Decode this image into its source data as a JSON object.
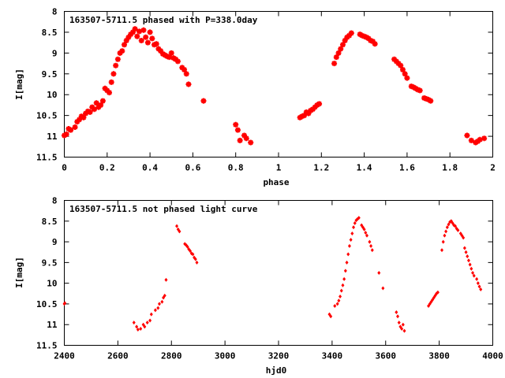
{
  "chart_data": [
    {
      "type": "scatter",
      "title": "163507-5711.5 phased with P=338.0day",
      "xlabel": "phase",
      "ylabel": "I[mag]",
      "xlim": [
        0,
        2
      ],
      "ylim": [
        11.5,
        8
      ],
      "y_inverted": true,
      "xticks": [
        0,
        0.2,
        0.4,
        0.6,
        0.8,
        1,
        1.2,
        1.4,
        1.6,
        1.8,
        2
      ],
      "xtick_labels": [
        "0",
        "0.2",
        "0.4",
        "0.6",
        "0.8",
        "1",
        "1.2",
        "1.4",
        "1.6",
        "1.8",
        "2"
      ],
      "yticks": [
        8,
        8.5,
        9,
        9.5,
        10,
        10.5,
        11,
        11.5
      ],
      "ytick_labels": [
        "8",
        "8.5",
        "9",
        "9.5",
        "10",
        "10.5",
        "11",
        "11.5"
      ],
      "grid": false,
      "marker_color": "#ff0000",
      "series": [
        {
          "x": [
            0.0,
            0.01,
            0.02,
            0.03,
            0.05,
            0.06,
            0.07,
            0.08,
            0.09,
            0.1,
            0.11,
            0.12,
            0.13,
            0.14,
            0.15,
            0.16,
            0.17,
            0.18,
            0.19,
            0.2,
            0.21,
            0.22,
            0.23,
            0.24,
            0.25,
            0.26,
            0.27,
            0.28,
            0.29,
            0.3,
            0.31,
            0.32,
            0.33,
            0.34,
            0.35,
            0.36,
            0.37,
            0.38,
            0.39,
            0.4,
            0.41,
            0.42,
            0.43,
            0.44,
            0.45,
            0.46,
            0.47,
            0.48,
            0.49,
            0.5,
            0.51,
            0.52,
            0.53,
            0.55,
            0.56,
            0.57,
            0.58,
            0.65,
            0.8,
            0.81,
            0.82,
            0.84,
            0.85,
            0.87,
            1.1,
            1.11,
            1.12,
            1.13,
            1.14,
            1.15,
            1.16,
            1.17,
            1.18,
            1.19,
            1.26,
            1.27,
            1.28,
            1.29,
            1.3,
            1.31,
            1.32,
            1.33,
            1.34,
            1.38,
            1.39,
            1.4,
            1.41,
            1.42,
            1.43,
            1.44,
            1.45,
            1.54,
            1.55,
            1.56,
            1.57,
            1.58,
            1.59,
            1.6,
            1.62,
            1.63,
            1.64,
            1.65,
            1.66,
            1.68,
            1.69,
            1.7,
            1.71,
            1.88,
            1.9,
            1.92,
            1.93,
            1.94,
            1.96
          ],
          "y": [
            10.98,
            10.95,
            10.82,
            10.85,
            10.78,
            10.65,
            10.6,
            10.52,
            10.55,
            10.45,
            10.4,
            10.42,
            10.3,
            10.35,
            10.2,
            10.3,
            10.25,
            10.15,
            9.85,
            9.9,
            9.95,
            9.7,
            9.5,
            9.3,
            9.15,
            9.0,
            8.95,
            8.8,
            8.7,
            8.62,
            8.55,
            8.5,
            8.42,
            8.6,
            8.48,
            8.7,
            8.45,
            8.62,
            8.75,
            8.5,
            8.65,
            8.8,
            8.78,
            8.9,
            8.95,
            9.02,
            9.05,
            9.08,
            9.1,
            9.0,
            9.12,
            9.15,
            9.2,
            9.35,
            9.4,
            9.5,
            9.75,
            10.15,
            10.72,
            10.85,
            11.1,
            10.98,
            11.05,
            11.15,
            10.55,
            10.52,
            10.5,
            10.42,
            10.45,
            10.38,
            10.35,
            10.3,
            10.25,
            10.22,
            9.25,
            9.1,
            9.0,
            8.9,
            8.8,
            8.7,
            8.62,
            8.58,
            8.52,
            8.55,
            8.58,
            8.6,
            8.62,
            8.65,
            8.7,
            8.72,
            8.78,
            9.15,
            9.2,
            9.25,
            9.3,
            9.4,
            9.5,
            9.6,
            9.8,
            9.82,
            9.85,
            9.88,
            9.9,
            10.08,
            10.1,
            10.12,
            10.15,
            10.98,
            11.1,
            11.15,
            11.12,
            11.08,
            11.05
          ]
        }
      ]
    },
    {
      "type": "scatter",
      "title": "163507-5711.5 not phased light curve",
      "xlabel": "hjd0",
      "ylabel": "I[mag]",
      "xlim": [
        2400,
        4000
      ],
      "ylim": [
        11.5,
        8
      ],
      "y_inverted": true,
      "xticks": [
        2400,
        2600,
        2800,
        3000,
        3200,
        3400,
        3600,
        3800,
        4000
      ],
      "xtick_labels": [
        "2400",
        "2600",
        "2800",
        "3000",
        "3200",
        "3400",
        "3600",
        "3800",
        "4000"
      ],
      "yticks": [
        8,
        8.5,
        9,
        9.5,
        10,
        10.5,
        11,
        11.5
      ],
      "ytick_labels": [
        "8",
        "8.5",
        "9",
        "9.5",
        "10",
        "10.5",
        "11",
        "11.5"
      ],
      "grid": false,
      "marker_color": "#ff0000",
      "series": [
        {
          "x": [
            2400,
            2402,
            2660,
            2670,
            2675,
            2685,
            2695,
            2700,
            2710,
            2720,
            2725,
            2740,
            2750,
            2755,
            2765,
            2770,
            2775,
            2780,
            2820,
            2825,
            2830,
            2850,
            2855,
            2860,
            2865,
            2870,
            2875,
            2880,
            2885,
            2890,
            2895,
            3390,
            3395,
            3410,
            3420,
            3425,
            3430,
            3435,
            3440,
            3445,
            3450,
            3455,
            3460,
            3465,
            3470,
            3475,
            3480,
            3485,
            3490,
            3495,
            3500,
            3510,
            3515,
            3520,
            3525,
            3530,
            3540,
            3545,
            3550,
            3575,
            3590,
            3640,
            3645,
            3650,
            3655,
            3660,
            3665,
            3670,
            3760,
            3765,
            3770,
            3775,
            3780,
            3785,
            3790,
            3795,
            3810,
            3815,
            3820,
            3825,
            3830,
            3835,
            3840,
            3845,
            3850,
            3855,
            3860,
            3865,
            3870,
            3880,
            3885,
            3890,
            3895,
            3900,
            3905,
            3910,
            3915,
            3920,
            3925,
            3930,
            3940,
            3945,
            3950,
            3955
          ],
          "y": [
            10.5,
            10.48,
            10.95,
            11.05,
            11.12,
            11.1,
            11.0,
            11.05,
            10.95,
            10.9,
            10.75,
            10.65,
            10.6,
            10.5,
            10.45,
            10.35,
            10.3,
            9.92,
            8.62,
            8.7,
            8.75,
            9.05,
            9.08,
            9.12,
            9.18,
            9.22,
            9.28,
            9.3,
            9.38,
            9.42,
            9.5,
            10.75,
            10.8,
            10.55,
            10.5,
            10.42,
            10.32,
            10.18,
            10.05,
            9.9,
            9.7,
            9.5,
            9.3,
            9.1,
            8.95,
            8.8,
            8.65,
            8.55,
            8.48,
            8.45,
            8.42,
            8.6,
            8.65,
            8.7,
            8.78,
            8.85,
            9.0,
            9.1,
            9.2,
            9.75,
            10.12,
            10.7,
            10.8,
            10.95,
            11.05,
            11.1,
            11.0,
            11.15,
            10.55,
            10.5,
            10.45,
            10.4,
            10.35,
            10.3,
            10.25,
            10.22,
            9.2,
            9.0,
            8.85,
            8.75,
            8.65,
            8.58,
            8.52,
            8.5,
            8.55,
            8.6,
            8.62,
            8.68,
            8.72,
            8.8,
            8.85,
            8.9,
            9.15,
            9.25,
            9.35,
            9.45,
            9.55,
            9.65,
            9.75,
            9.82,
            9.9,
            10.0,
            10.08,
            10.15
          ]
        }
      ]
    }
  ]
}
